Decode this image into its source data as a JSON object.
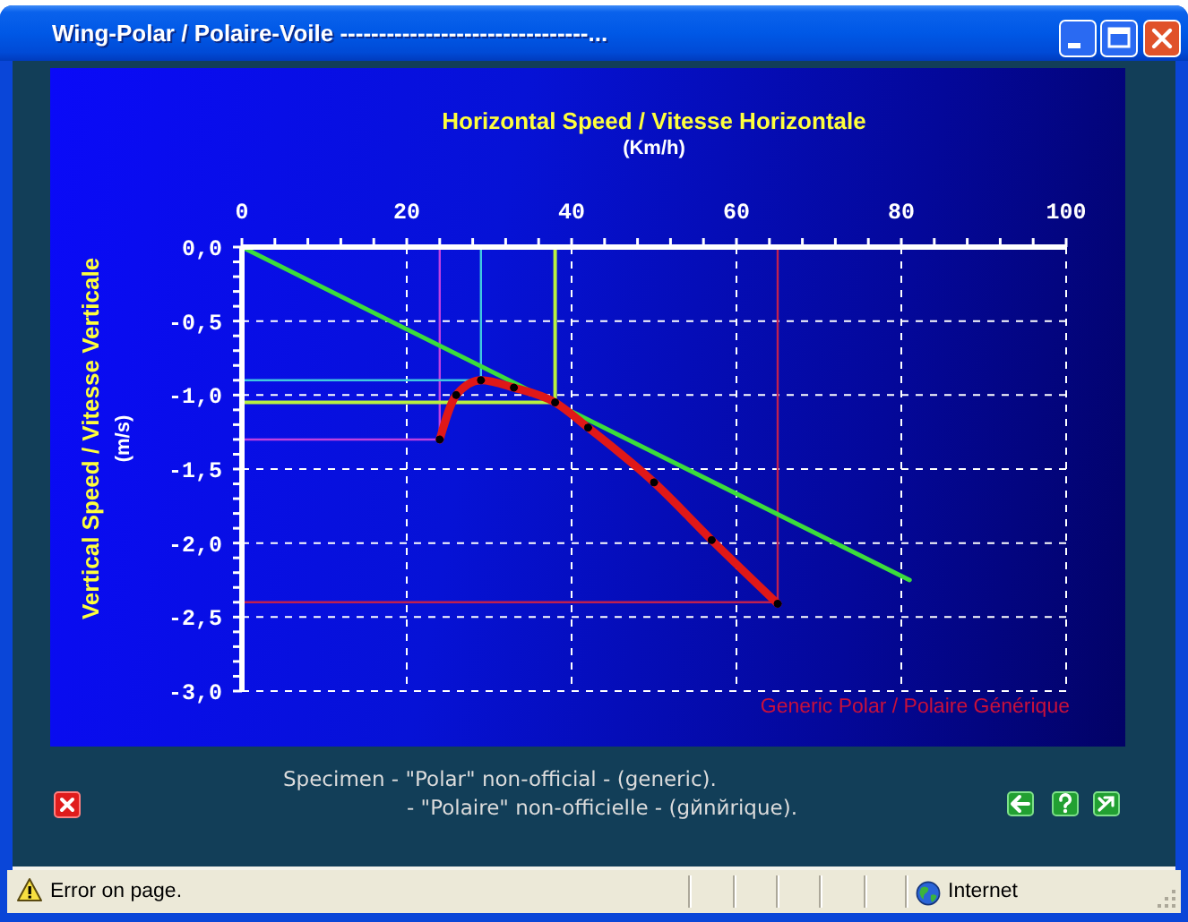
{
  "chart_data": {
    "type": "line",
    "title": "Wing-Polar / Polaire-Voile --------------------------------...",
    "xlabel": "Horizontal Speed / Vitesse Horizontale\n(Km/h)",
    "ylabel": "Vertical Speed / Vitesse Verticale\n(m/s)",
    "xlim": [
      0,
      100
    ],
    "ylim": [
      -3,
      0
    ],
    "xticks": [
      0,
      {
        "value": 4,
        "label": null
      },
      {
        "value": 8,
        "label": null
      },
      {
        "value": 12,
        "label": null
      },
      {
        "value": 16,
        "label": null
      },
      20,
      {
        "value": 24,
        "label": null
      },
      {
        "value": 28,
        "label": null
      },
      {
        "value": 32,
        "label": null
      },
      {
        "value": 36,
        "label": null
      },
      40,
      {
        "value": 44,
        "label": null
      },
      {
        "value": 48,
        "label": null
      },
      {
        "value": 52,
        "label": null
      },
      {
        "value": 56,
        "label": null
      },
      60,
      {
        "value": 64,
        "label": null
      },
      {
        "value": 68,
        "label": null
      },
      {
        "value": 72,
        "label": null
      },
      {
        "value": 76,
        "label": null
      },
      80,
      {
        "value": 84,
        "label": null
      },
      {
        "value": 88,
        "label": null
      },
      {
        "value": 92,
        "label": null
      },
      {
        "value": 96,
        "label": null
      },
      100
    ],
    "yticks": [
      {
        "value": 0,
        "label": "0,0"
      },
      {
        "value": -0.1,
        "label": null
      },
      {
        "value": -0.2,
        "label": null
      },
      {
        "value": -0.3,
        "label": null
      },
      {
        "value": -0.4,
        "label": null
      },
      {
        "value": -0.5,
        "label": "-0,5"
      },
      {
        "value": -0.6,
        "label": null
      },
      {
        "value": -0.7,
        "label": null
      },
      {
        "value": -0.8,
        "label": null
      },
      {
        "value": -0.9,
        "label": null
      },
      {
        "value": -1.0,
        "label": "-1,0"
      },
      {
        "value": -1.1,
        "label": null
      },
      {
        "value": -1.2,
        "label": null
      },
      {
        "value": -1.3,
        "label": null
      },
      {
        "value": -1.4,
        "label": null
      },
      {
        "value": -1.5,
        "label": "-1,5"
      },
      {
        "value": -1.6,
        "label": null
      },
      {
        "value": -1.7,
        "label": null
      },
      {
        "value": -1.8,
        "label": null
      },
      {
        "value": -1.9,
        "label": null
      },
      {
        "value": -2.0,
        "label": "-2,0"
      },
      {
        "value": -2.1,
        "label": null
      },
      {
        "value": -2.2,
        "label": null
      },
      {
        "value": -2.3,
        "label": null
      },
      {
        "value": -2.4,
        "label": null
      },
      {
        "value": -2.5,
        "label": "-2,5"
      },
      {
        "value": -2.6,
        "label": null
      },
      {
        "value": -2.7,
        "label": null
      },
      {
        "value": -2.8,
        "label": null
      },
      {
        "value": -2.9,
        "label": null
      },
      {
        "value": -3.0,
        "label": "-3,0"
      }
    ],
    "grid": true,
    "marker": "none",
    "series": [
      {
        "color": "#c040e0",
        "x": [
          0,
          24,
          24
        ],
        "values": [
          -1.3,
          -1.3,
          0
        ]
      },
      {
        "color": "#40c8e0",
        "x": [
          0,
          29,
          29
        ],
        "values": [
          -0.9,
          -0.9,
          0
        ]
      },
      {
        "color": "#b8f040",
        "x": [
          0,
          38,
          38
        ],
        "values": [
          -1.05,
          -1.05,
          0
        ]
      },
      {
        "color": "#c02050",
        "x": [
          0,
          65,
          65
        ],
        "values": [
          -2.4,
          -2.4,
          0
        ]
      },
      {
        "color": "#3cdc3c",
        "x": [
          0,
          81
        ],
        "values": [
          0,
          -2.25
        ]
      },
      {
        "color": "#e01818",
        "marker": "circle",
        "x": [
          24,
          26,
          29,
          33,
          38,
          42,
          50,
          57,
          65
        ],
        "values": [
          -1.3,
          -1.0,
          -0.9,
          -0.95,
          -1.05,
          -1.22,
          -1.59,
          -1.98,
          -2.41
        ]
      }
    ],
    "annotations": [
      "Generic Polar / Polaire Générique",
      "Specimen - \"Polar\" non-official - (generic).",
      "- \"Polaire\" non-officielle - (gйnйrique).",
      "Error on page.",
      "Internet"
    ]
  }
}
